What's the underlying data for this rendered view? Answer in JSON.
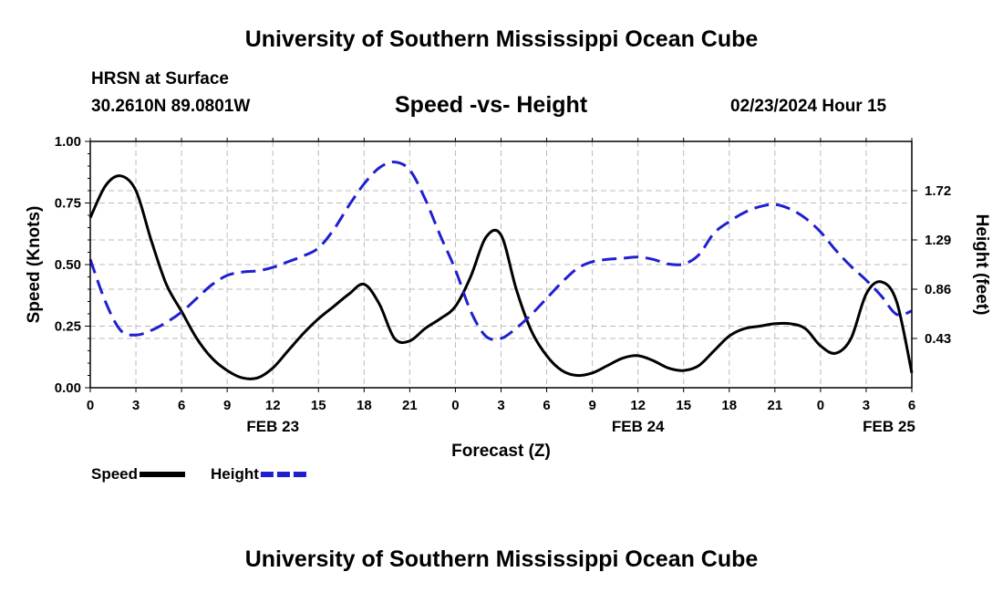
{
  "header": {
    "title": "University of Southern Mississippi Ocean Cube",
    "station": "HRSN at Surface",
    "coords": "30.2610N  89.0801W",
    "plot_title": "Speed -vs- Height",
    "datetime": "02/23/2024 Hour 15"
  },
  "footer": {
    "title": "University of Southern Mississippi Ocean Cube"
  },
  "colors": {
    "speed": "#000000",
    "height": "#1f1fd0",
    "grid": "#bbbbbb"
  },
  "chart_data": {
    "type": "line",
    "title": "Speed -vs- Height",
    "xlabel": "Forecast (Z)",
    "ylabel_left": "Speed (Knots)",
    "ylabel_right": "Height (feet)",
    "x_hours_range": [
      0,
      54
    ],
    "x_tick_step_hours": 3,
    "x_tick_labels": [
      "0",
      "3",
      "6",
      "9",
      "12",
      "15",
      "18",
      "21",
      "0",
      "3",
      "6",
      "9",
      "12",
      "15",
      "18",
      "21",
      "0",
      "3",
      "6"
    ],
    "date_labels": [
      {
        "label": "FEB 23",
        "hour": 12
      },
      {
        "label": "FEB 24",
        "hour": 36
      },
      {
        "label": "FEB 25",
        "hour": 52.5
      }
    ],
    "y_left_range": [
      0,
      1
    ],
    "y_left_ticks": [
      "0.00",
      "0.25",
      "0.50",
      "0.75",
      "1.00"
    ],
    "y_right_range": [
      0,
      2.15
    ],
    "y_right_ticks": [
      "0.43",
      "0.86",
      "1.29",
      "1.72"
    ],
    "series": [
      {
        "name": "Speed",
        "axis": "left",
        "style": "solid",
        "x": [
          0,
          1,
          2,
          3,
          4,
          5,
          6,
          7,
          8,
          9,
          10,
          11,
          12,
          13,
          14,
          15,
          16,
          17,
          18,
          19,
          20,
          21,
          22,
          23,
          24,
          25,
          26,
          27,
          28,
          29,
          30,
          31,
          32,
          33,
          34,
          35,
          36,
          37,
          38,
          39,
          40,
          41,
          42,
          43,
          44,
          45,
          46,
          47,
          48,
          49,
          50,
          51,
          52,
          53,
          54
        ],
        "values": [
          0.69,
          0.82,
          0.86,
          0.8,
          0.6,
          0.42,
          0.31,
          0.2,
          0.12,
          0.07,
          0.04,
          0.04,
          0.08,
          0.15,
          0.22,
          0.28,
          0.33,
          0.38,
          0.42,
          0.34,
          0.2,
          0.19,
          0.24,
          0.28,
          0.33,
          0.45,
          0.61,
          0.62,
          0.4,
          0.23,
          0.13,
          0.07,
          0.05,
          0.06,
          0.09,
          0.12,
          0.13,
          0.11,
          0.08,
          0.07,
          0.09,
          0.15,
          0.21,
          0.24,
          0.25,
          0.26,
          0.26,
          0.24,
          0.17,
          0.14,
          0.2,
          0.38,
          0.43,
          0.35,
          0.06
        ]
      },
      {
        "name": "Height",
        "axis": "right",
        "style": "dashed",
        "x": [
          0,
          1,
          2,
          3,
          4,
          5,
          6,
          7,
          8,
          9,
          10,
          11,
          12,
          13,
          14,
          15,
          16,
          17,
          18,
          19,
          20,
          21,
          22,
          23,
          24,
          25,
          26,
          27,
          28,
          29,
          30,
          31,
          32,
          33,
          34,
          35,
          36,
          37,
          38,
          39,
          40,
          41,
          42,
          43,
          44,
          45,
          46,
          47,
          48,
          49,
          50,
          51,
          52,
          53,
          54
        ],
        "values": [
          1.12,
          0.75,
          0.5,
          0.46,
          0.5,
          0.57,
          0.66,
          0.78,
          0.9,
          0.98,
          1.01,
          1.02,
          1.05,
          1.1,
          1.15,
          1.22,
          1.38,
          1.59,
          1.78,
          1.92,
          1.97,
          1.9,
          1.65,
          1.33,
          1.03,
          0.67,
          0.45,
          0.43,
          0.52,
          0.64,
          0.78,
          0.92,
          1.04,
          1.1,
          1.12,
          1.13,
          1.14,
          1.12,
          1.08,
          1.08,
          1.16,
          1.35,
          1.45,
          1.53,
          1.58,
          1.6,
          1.56,
          1.48,
          1.36,
          1.2,
          1.06,
          0.94,
          0.8,
          0.64,
          0.67
        ]
      }
    ],
    "legend": [
      {
        "label": "Speed",
        "style": "solid"
      },
      {
        "label": "Height",
        "style": "dashed"
      }
    ]
  }
}
